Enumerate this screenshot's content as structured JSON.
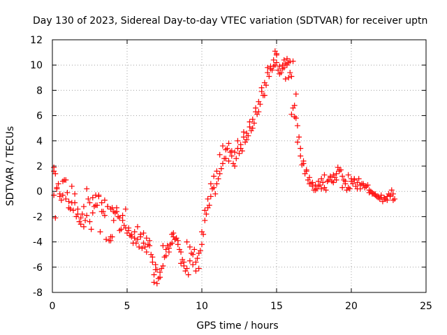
{
  "chart_data": {
    "type": "scatter",
    "title": "Day 130 of 2023, Sidereal Day-to-day VTEC variation (SDTVAR) for receiver uptn",
    "xlabel": "GPS time / hours",
    "ylabel": "SDTVAR / TECUs",
    "xlim": [
      0,
      25
    ],
    "ylim": [
      -8,
      12
    ],
    "xticks": [
      0,
      5,
      10,
      15,
      20,
      25
    ],
    "yticks": [
      -8,
      -6,
      -4,
      -2,
      0,
      2,
      4,
      6,
      8,
      10,
      12
    ],
    "xtick_labels": [
      "0",
      "5",
      "10",
      "15",
      "20",
      "25"
    ],
    "ytick_labels": [
      "-8",
      "-6",
      "-4",
      "-2",
      "0",
      "2",
      "4",
      "6",
      "8",
      "10",
      "12"
    ],
    "grid": true,
    "marker": "+",
    "series": [
      {
        "name": "SDTVAR",
        "color": "#ff0000",
        "x": [
          0.1,
          0.2,
          0.3,
          0.5,
          0.7,
          0.9,
          1.1,
          1.3,
          1.5,
          1.7,
          1.9,
          2.1,
          2.3,
          2.5,
          2.7,
          2.9,
          3.1,
          3.3,
          3.5,
          3.7,
          3.9,
          4.1,
          4.3,
          4.5,
          4.7,
          4.9,
          5.1,
          5.3,
          5.5,
          5.7,
          5.9,
          6.1,
          6.3,
          6.5,
          6.7,
          6.9,
          7.0,
          7.2,
          7.4,
          7.6,
          7.8,
          8.0,
          8.2,
          8.4,
          8.6,
          8.8,
          9.0,
          9.2,
          9.4,
          9.6,
          9.8,
          10.0,
          10.2,
          10.4,
          10.6,
          10.8,
          11.0,
          11.2,
          11.4,
          11.6,
          11.8,
          12.0,
          12.2,
          12.4,
          12.6,
          12.8,
          13.0,
          13.2,
          13.4,
          13.6,
          13.8,
          14.0,
          14.2,
          14.4,
          14.6,
          14.8,
          15.0,
          15.2,
          15.4,
          15.6,
          15.8,
          16.0,
          16.2,
          16.4,
          16.6,
          16.8,
          17.0,
          17.2,
          17.4,
          17.6,
          17.8,
          18.0,
          18.2,
          18.4,
          18.6,
          18.8,
          19.0,
          19.2,
          19.4,
          19.6,
          19.8,
          20.0,
          20.2,
          20.4,
          20.6,
          20.8,
          21.0,
          21.2,
          21.4,
          21.6,
          21.8,
          22.0,
          22.2,
          22.4,
          22.6,
          22.8,
          0.1,
          0.3,
          0.5,
          0.7,
          0.9,
          1.1,
          1.3,
          1.5,
          1.7,
          1.9,
          2.1,
          2.3,
          2.5,
          2.7,
          2.9,
          3.1,
          3.3,
          3.5,
          3.7,
          3.9,
          4.1,
          4.3,
          4.5,
          4.7,
          4.9,
          5.1,
          5.3,
          5.5,
          5.7,
          5.9,
          6.1,
          6.3,
          6.5,
          6.7,
          6.9,
          7.1,
          7.3,
          7.5,
          7.7,
          7.9,
          8.1,
          8.3,
          8.5,
          8.7,
          8.9,
          9.1,
          9.3,
          9.5,
          9.7,
          9.9,
          10.1,
          10.3,
          10.5,
          10.7,
          10.9,
          11.1,
          11.3,
          11.5,
          11.7,
          11.9,
          12.1,
          12.3,
          12.5,
          12.7,
          12.9,
          13.1,
          13.3,
          13.5,
          13.7,
          13.9,
          14.1,
          14.3,
          14.5,
          14.7,
          14.9,
          15.1,
          15.3,
          15.5,
          15.7,
          15.9,
          16.1,
          16.3,
          16.5,
          16.7,
          16.9,
          17.1,
          17.3,
          17.5,
          17.7,
          17.9,
          18.1,
          18.3,
          18.5,
          18.7,
          18.9,
          19.1,
          19.3,
          19.5,
          19.7,
          19.9,
          20.1,
          20.3,
          20.5,
          20.7,
          20.9,
          21.1,
          21.3,
          21.5,
          21.7,
          21.9,
          22.1,
          22.3,
          22.5,
          22.7,
          22.9,
          0.2,
          0.6,
          1.0,
          1.4,
          1.8,
          2.2,
          2.6,
          3.0,
          3.4,
          3.8,
          4.2,
          4.6,
          5.0,
          5.4,
          5.8,
          6.2,
          6.6,
          7.0,
          7.4,
          7.8,
          8.2,
          8.6,
          9.0,
          9.4,
          9.8,
          10.2,
          10.6,
          11.0,
          11.4,
          11.8,
          12.2,
          12.6,
          13.0,
          13.4,
          13.8,
          14.2,
          14.6,
          15.0,
          15.4,
          15.8,
          16.2,
          16.6,
          17.0,
          17.4,
          17.8,
          18.2,
          18.6,
          19.0,
          19.4,
          19.8,
          20.2,
          20.6,
          21.0,
          21.4,
          21.8,
          22.2,
          22.6,
          0.1,
          0.4,
          0.8,
          1.2,
          1.6,
          2.0,
          2.4,
          2.8,
          3.2,
          3.6,
          4.0,
          4.4,
          4.8,
          5.2,
          5.6,
          6.0,
          6.4,
          6.8,
          7.2,
          7.6,
          8.0,
          8.4,
          8.8,
          9.2,
          9.6,
          10.0,
          10.4,
          10.8,
          11.2,
          11.6,
          12.0,
          12.4,
          12.8,
          13.2,
          13.6,
          14.0,
          14.4,
          14.8,
          15.2,
          15.6,
          16.0,
          16.4,
          16.8,
          17.2,
          17.6,
          18.0,
          18.4,
          18.8,
          19.2,
          19.6,
          20.0,
          20.4,
          20.8,
          21.2,
          21.6,
          22.0,
          22.4,
          22.8,
          14.9,
          15.0,
          15.5,
          15.7,
          15.9,
          16.1,
          16.3,
          3.9,
          6.8,
          4.0,
          8.1
        ],
        "y": [
          1.9,
          1.4,
          0.3,
          -0.4,
          0.8,
          -0.6,
          -1.3,
          0.4,
          -0.9,
          -1.8,
          -2.6,
          -1.2,
          0.2,
          -2.4,
          -0.5,
          -1.1,
          -0.3,
          -1.6,
          -1.9,
          -1.2,
          -1.4,
          -2.3,
          -1.3,
          -3.1,
          -1.9,
          -1.4,
          -2.9,
          -3.6,
          -3.2,
          -3.8,
          -3.4,
          -3.3,
          -4.8,
          -3.9,
          -5.6,
          -6.2,
          -7.3,
          -6.8,
          -5.9,
          -4.6,
          -4.8,
          -3.4,
          -3.8,
          -4.2,
          -4.8,
          -5.6,
          -6.1,
          -4.4,
          -5.8,
          -6.3,
          -6.1,
          -4.2,
          -2.3,
          -1.3,
          -0.4,
          0.3,
          0.6,
          1.4,
          2.2,
          2.6,
          2.4,
          2.8,
          3.1,
          3.4,
          3.7,
          4.3,
          4.6,
          5.1,
          5.7,
          6.3,
          7.1,
          7.9,
          8.6,
          9.4,
          9.9,
          10.4,
          10.8,
          9.3,
          9.7,
          10.1,
          10.2,
          9.1,
          6.8,
          5.2,
          3.4,
          2.4,
          1.6,
          1.1,
          0.7,
          0.5,
          0.4,
          0.2,
          0.3,
          0.8,
          1.2,
          1.3,
          1.4,
          1.6,
          1.2,
          0.6,
          0.3,
          0.8,
          1.0,
          0.7,
          0.2,
          0.6,
          0.4,
          0.1,
          -0.1,
          -0.3,
          -0.4,
          -0.5,
          -0.5,
          -0.4,
          -0.3,
          -0.7,
          1.6,
          0.2,
          -0.2,
          -0.3,
          0.9,
          -0.8,
          -0.9,
          -0.2,
          -1.4,
          -2.1,
          -2.8,
          -1.9,
          -0.9,
          -1.7,
          -0.3,
          -0.4,
          -0.9,
          -0.7,
          -1.2,
          -3.6,
          -1.6,
          -1.6,
          -2.1,
          -2.3,
          -2.9,
          -3.1,
          -3.4,
          -3.7,
          -2.8,
          -3.6,
          -4.1,
          -3.7,
          -4.3,
          -5.2,
          -5.8,
          -6.9,
          -6.1,
          -5.2,
          -4.3,
          -4.2,
          -3.6,
          -3.7,
          -4.6,
          -5.4,
          -6.3,
          -6.6,
          -4.9,
          -4.6,
          -5.3,
          -4.7,
          -3.4,
          -1.8,
          -1.1,
          0.2,
          -0.2,
          1.0,
          1.8,
          2.6,
          3.4,
          3.1,
          2.2,
          2.6,
          3.0,
          3.2,
          3.9,
          4.4,
          4.8,
          5.4,
          6.1,
          6.9,
          7.6,
          8.4,
          9.1,
          9.6,
          10.0,
          9.6,
          9.4,
          9.8,
          10.0,
          9.4,
          6.6,
          5.8,
          4.3,
          2.1,
          1.4,
          0.9,
          0.6,
          0.1,
          0.2,
          0.5,
          0.7,
          0.1,
          0.9,
          0.8,
          1.1,
          1.9,
          1.7,
          0.9,
          0.1,
          0.2,
          0.6,
          0.4,
          1.0,
          0.6,
          0.3,
          0.5,
          0.0,
          -0.2,
          -0.4,
          -0.6,
          -0.8,
          -0.6,
          -0.2,
          0.1,
          -0.6,
          -2.1,
          -0.7,
          -0.1,
          -1.5,
          -2.4,
          -2.3,
          -3.0,
          -1.1,
          -1.6,
          -3.9,
          -1.7,
          -3.0,
          -3.3,
          -4.1,
          -4.4,
          -4.4,
          -5.0,
          -6.2,
          -4.3,
          -4.5,
          -3.8,
          -5.7,
          -4.0,
          -5.0,
          -4.9,
          -1.5,
          0.6,
          1.6,
          3.6,
          3.8,
          2.0,
          3.4,
          4.1,
          5.0,
          6.3,
          7.6,
          9.7,
          10.2,
          10.0,
          9.0,
          5.9,
          2.8,
          1.7,
          0.4,
          0.8,
          1.3,
          1.1,
          0.9,
          0.3,
          1.3,
          0.9,
          0.5,
          0.4,
          -0.2,
          -0.5,
          -0.6,
          -0.4,
          -0.3,
          0.6,
          0.9,
          -1.4,
          -2.0,
          -1.8,
          -0.6,
          -1.2,
          -3.2,
          -3.8,
          -1.3,
          -2.0,
          -2.7,
          -3.5,
          -4.1,
          -4.5,
          -4.2,
          -6.6,
          -6.4,
          -5.1,
          -4.1,
          -3.9,
          -5.9,
          -5.5,
          -5.6,
          -3.2,
          -0.6,
          1.2,
          2.9,
          3.3,
          3.2,
          4.0,
          4.7,
          5.5,
          6.6,
          8.2,
          9.8,
          9.9,
          9.9,
          8.9,
          6.1,
          3.9,
          2.2,
          0.6,
          0.1,
          1.0,
          0.8,
          0.7,
          1.7,
          0.8,
          1.0,
          0.2,
          0.5,
          -0.1,
          -0.2,
          -0.3,
          -0.7,
          -0.2,
          11.1,
          10.9,
          10.4,
          10.5,
          10.3,
          10.3,
          7.7,
          -3.9,
          -7.2,
          -3.6,
          -3.3
        ]
      }
    ]
  }
}
